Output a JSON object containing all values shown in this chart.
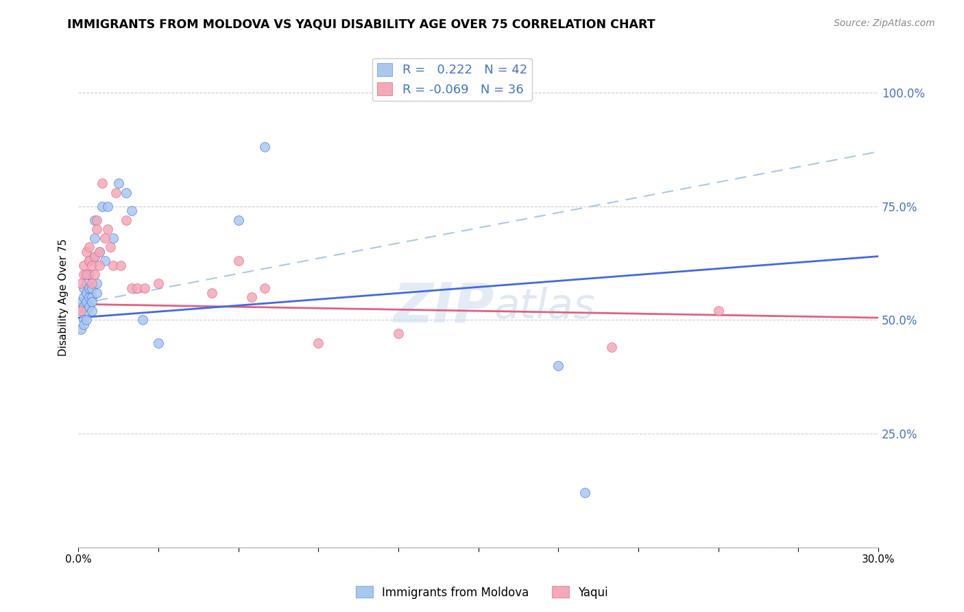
{
  "title": "IMMIGRANTS FROM MOLDOVA VS YAQUI DISABILITY AGE OVER 75 CORRELATION CHART",
  "source": "Source: ZipAtlas.com",
  "ylabel": "Disability Age Over 75",
  "xlim": [
    0.0,
    0.3
  ],
  "ylim": [
    0.0,
    1.1
  ],
  "legend1_label": "R =   0.222   N = 42",
  "legend2_label": "R = -0.069   N = 36",
  "color_blue": "#A8C8F0",
  "color_pink": "#F4A8B8",
  "line_blue": "#4169E1",
  "line_pink": "#E06080",
  "line_dashed": "#A8C8E8",
  "watermark_zip": "ZIP",
  "watermark_atlas": "atlas",
  "blue_x": [
    0.001,
    0.001,
    0.001,
    0.002,
    0.002,
    0.002,
    0.002,
    0.002,
    0.003,
    0.003,
    0.003,
    0.003,
    0.003,
    0.003,
    0.004,
    0.004,
    0.004,
    0.004,
    0.004,
    0.005,
    0.005,
    0.005,
    0.005,
    0.006,
    0.006,
    0.006,
    0.007,
    0.007,
    0.008,
    0.009,
    0.01,
    0.011,
    0.013,
    0.015,
    0.018,
    0.02,
    0.024,
    0.03,
    0.06,
    0.07,
    0.18,
    0.19
  ],
  "blue_y": [
    0.48,
    0.52,
    0.54,
    0.5,
    0.53,
    0.57,
    0.55,
    0.49,
    0.52,
    0.5,
    0.56,
    0.54,
    0.6,
    0.58,
    0.53,
    0.55,
    0.57,
    0.6,
    0.63,
    0.55,
    0.57,
    0.54,
    0.52,
    0.64,
    0.68,
    0.72,
    0.58,
    0.56,
    0.65,
    0.75,
    0.63,
    0.75,
    0.68,
    0.8,
    0.78,
    0.74,
    0.5,
    0.45,
    0.72,
    0.88,
    0.4,
    0.12
  ],
  "pink_x": [
    0.001,
    0.001,
    0.002,
    0.002,
    0.003,
    0.003,
    0.004,
    0.004,
    0.005,
    0.005,
    0.006,
    0.006,
    0.007,
    0.007,
    0.008,
    0.008,
    0.009,
    0.01,
    0.011,
    0.012,
    0.013,
    0.014,
    0.016,
    0.018,
    0.02,
    0.022,
    0.025,
    0.03,
    0.05,
    0.06,
    0.065,
    0.07,
    0.09,
    0.12,
    0.2,
    0.24
  ],
  "pink_y": [
    0.52,
    0.58,
    0.62,
    0.6,
    0.65,
    0.6,
    0.63,
    0.66,
    0.58,
    0.62,
    0.6,
    0.64,
    0.7,
    0.72,
    0.65,
    0.62,
    0.8,
    0.68,
    0.7,
    0.66,
    0.62,
    0.78,
    0.62,
    0.72,
    0.57,
    0.57,
    0.57,
    0.58,
    0.56,
    0.63,
    0.55,
    0.57,
    0.45,
    0.47,
    0.44,
    0.52
  ],
  "blue_trend": [
    0.0,
    0.3,
    0.505,
    0.64
  ],
  "pink_trend": [
    0.0,
    0.3,
    0.535,
    0.505
  ],
  "dashed_trend": [
    0.0,
    0.3,
    0.535,
    0.87
  ]
}
